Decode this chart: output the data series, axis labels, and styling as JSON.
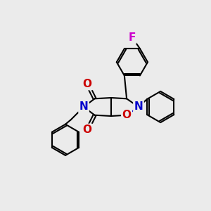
{
  "background_color": "#ebebeb",
  "figsize": [
    3.0,
    3.0
  ],
  "dpi": 100,
  "bond_color": "#000000",
  "bond_width": 1.5,
  "atom_colors": {
    "N": "#0000cc",
    "O": "#cc0000",
    "F": "#cc00cc",
    "C": "#000000"
  }
}
